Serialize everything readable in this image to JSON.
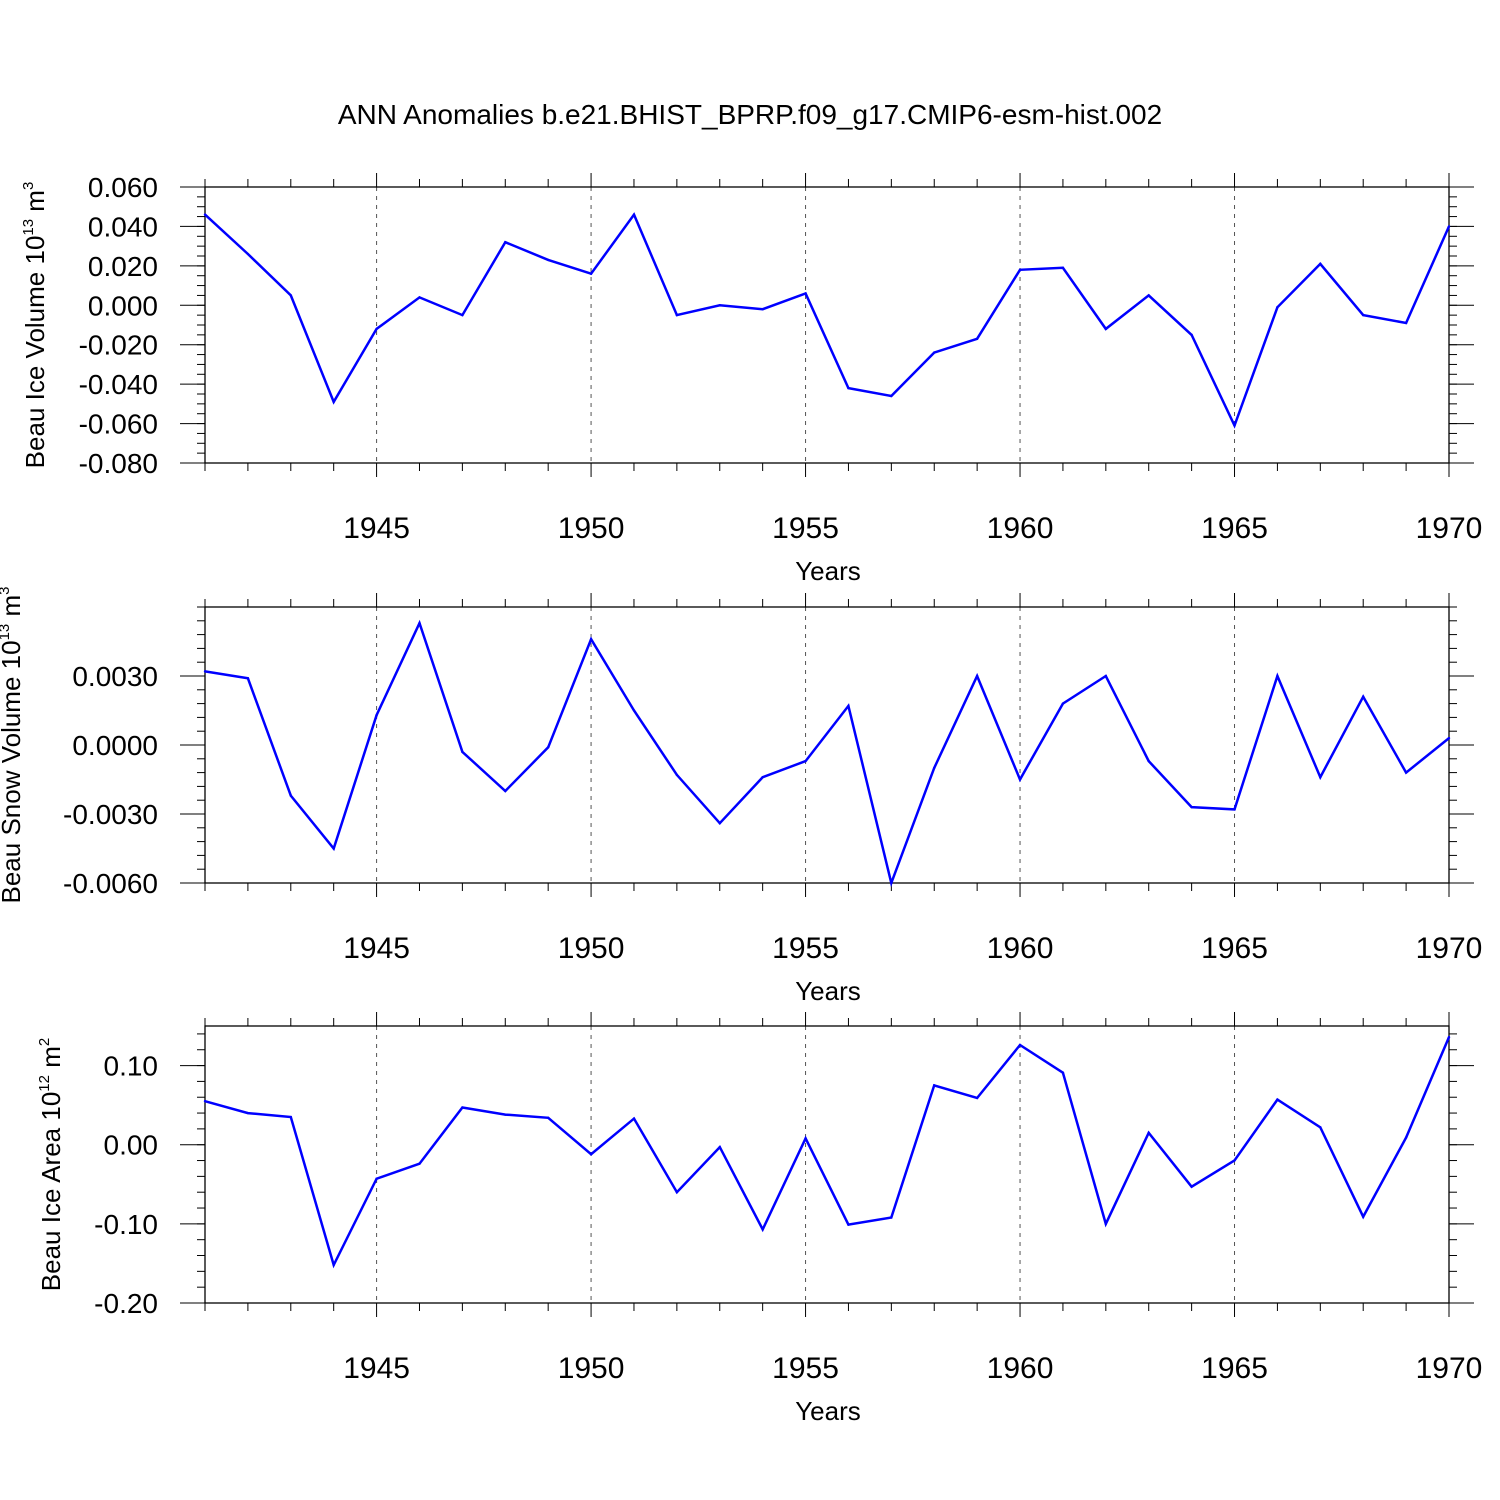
{
  "figure": {
    "title": "ANN Anomalies b.e21.BHIST_BPRP.f09_g17.CMIP6-esm-hist.002"
  },
  "chart_data": [
    {
      "type": "line",
      "title": "",
      "xlabel": "Years",
      "ylabel": {
        "main": "Beau Ice Volume 10",
        "sup": "13",
        "unit": " m",
        "unit_sup": "3"
      },
      "xlim": [
        1941,
        1970
      ],
      "ylim": [
        -0.08,
        0.06
      ],
      "xticks": [
        1945,
        1950,
        1955,
        1960,
        1965,
        1970
      ],
      "xtick_labels": [
        "1945",
        "1950",
        "1955",
        "1960",
        "1965",
        "1970"
      ],
      "yticks": [
        0.06,
        0.04,
        0.02,
        0.0,
        -0.02,
        -0.04,
        -0.06,
        -0.08
      ],
      "ytick_labels": [
        "0.060",
        "0.040",
        "0.020",
        "0.000",
        "-0.020",
        "-0.040",
        "-0.060",
        "-0.080"
      ],
      "yminor_step": 0.005,
      "grid": "vertical dashed at major x ticks",
      "color": "#0000ff",
      "x": [
        1941,
        1942,
        1943,
        1944,
        1945,
        1946,
        1947,
        1948,
        1949,
        1950,
        1951,
        1952,
        1953,
        1954,
        1955,
        1956,
        1957,
        1958,
        1959,
        1960,
        1961,
        1962,
        1963,
        1964,
        1965,
        1966,
        1967,
        1968,
        1969,
        1970
      ],
      "y": [
        0.046,
        0.026,
        0.005,
        -0.049,
        -0.012,
        0.004,
        -0.005,
        0.032,
        0.023,
        0.016,
        0.046,
        -0.005,
        0.0,
        -0.002,
        0.006,
        -0.042,
        -0.046,
        -0.024,
        -0.017,
        0.018,
        0.019,
        -0.012,
        0.005,
        -0.015,
        -0.061,
        -0.001,
        0.021,
        -0.005,
        -0.009,
        0.04
      ]
    },
    {
      "type": "line",
      "title": "",
      "xlabel": "Years",
      "ylabel": {
        "main": "Beau Snow Volume 10",
        "sup": "13",
        "unit": " m",
        "unit_sup": "3"
      },
      "xlim": [
        1941,
        1970
      ],
      "ylim": [
        -0.006,
        0.006
      ],
      "xticks": [
        1945,
        1950,
        1955,
        1960,
        1965,
        1970
      ],
      "xtick_labels": [
        "1945",
        "1950",
        "1955",
        "1960",
        "1965",
        "1970"
      ],
      "yticks": [
        0.003,
        0.0,
        -0.003,
        -0.006
      ],
      "ytick_labels": [
        "0.0030",
        "0.0000",
        "-0.0030",
        "-0.0060"
      ],
      "yminor_step": 0.0006,
      "grid": "vertical dashed at major x ticks",
      "color": "#0000ff",
      "x": [
        1941,
        1942,
        1943,
        1944,
        1945,
        1946,
        1947,
        1948,
        1949,
        1950,
        1951,
        1952,
        1953,
        1954,
        1955,
        1956,
        1957,
        1958,
        1959,
        1960,
        1961,
        1962,
        1963,
        1964,
        1965,
        1966,
        1967,
        1968,
        1969,
        1970
      ],
      "y": [
        0.0032,
        0.0029,
        -0.0022,
        -0.0045,
        0.0013,
        0.0053,
        -0.0003,
        -0.002,
        -0.0001,
        0.0046,
        0.0015,
        -0.0013,
        -0.0034,
        -0.0014,
        -0.0007,
        0.0017,
        -0.006,
        -0.001,
        0.003,
        -0.0015,
        0.0018,
        0.003,
        -0.0007,
        -0.0027,
        -0.0028,
        0.003,
        -0.0014,
        0.0021,
        -0.0012,
        0.0003
      ]
    },
    {
      "type": "line",
      "title": "",
      "xlabel": "Years",
      "ylabel": {
        "main": "Beau Ice Area 10",
        "sup": "12",
        "unit": " m",
        "unit_sup": "2"
      },
      "xlim": [
        1941,
        1970
      ],
      "ylim": [
        -0.2,
        0.15
      ],
      "xticks": [
        1945,
        1950,
        1955,
        1960,
        1965,
        1970
      ],
      "xtick_labels": [
        "1945",
        "1950",
        "1955",
        "1960",
        "1965",
        "1970"
      ],
      "yticks": [
        0.1,
        0.0,
        -0.1,
        -0.2
      ],
      "ytick_labels": [
        "0.10",
        "0.00",
        "-0.10",
        "-0.20"
      ],
      "yminor_step": 0.02,
      "grid": "vertical dashed at major x ticks",
      "color": "#0000ff",
      "x": [
        1941,
        1942,
        1943,
        1944,
        1945,
        1946,
        1947,
        1948,
        1949,
        1950,
        1951,
        1952,
        1953,
        1954,
        1955,
        1956,
        1957,
        1958,
        1959,
        1960,
        1961,
        1962,
        1963,
        1964,
        1965,
        1966,
        1967,
        1968,
        1969,
        1970
      ],
      "y": [
        0.055,
        0.04,
        0.035,
        -0.152,
        -0.043,
        -0.024,
        0.047,
        0.038,
        0.034,
        -0.012,
        0.033,
        -0.06,
        -0.003,
        -0.107,
        0.008,
        -0.101,
        -0.092,
        0.075,
        0.059,
        0.126,
        0.091,
        -0.1,
        0.015,
        -0.053,
        -0.02,
        0.057,
        0.022,
        -0.091,
        0.009,
        0.136
      ]
    }
  ]
}
